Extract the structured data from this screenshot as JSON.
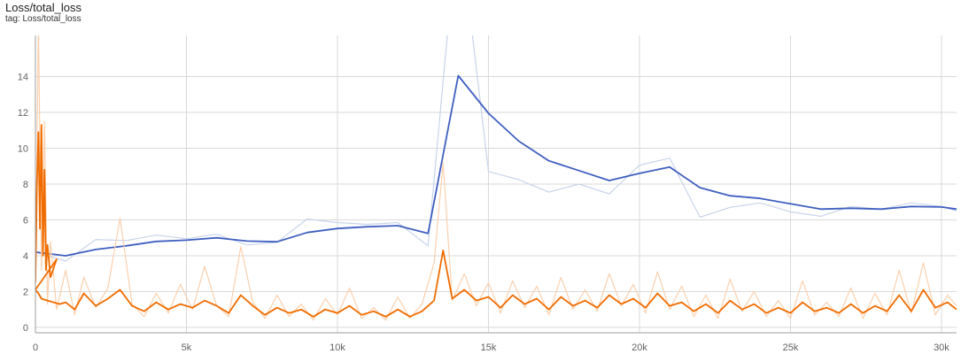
{
  "header": {
    "title": "Loss/total_loss",
    "tag": "tag: Loss/total_loss"
  },
  "chart_data": {
    "type": "line",
    "title": "Loss/total_loss",
    "xlabel": "",
    "ylabel": "",
    "xlim": [
      0,
      30500
    ],
    "ylim": [
      -0.3,
      16.3
    ],
    "x_ticks": [
      0,
      5000,
      10000,
      15000,
      20000,
      25000,
      30000
    ],
    "x_tick_labels": [
      "0",
      "5k",
      "10k",
      "15k",
      "20k",
      "25k",
      "30k"
    ],
    "y_ticks": [
      0,
      2,
      4,
      6,
      8,
      10,
      12,
      14
    ],
    "y_tick_labels": [
      "0",
      "2",
      "4",
      "6",
      "8",
      "10",
      "12",
      "14"
    ],
    "grid": true,
    "colors": {
      "blue_smoothed": "#3f5fc0",
      "blue_raw": "#c8d3ea",
      "orange_smoothed": "#f06c00",
      "orange_raw": "#fbd0ad",
      "grid": "#d9d9d9"
    },
    "series": [
      {
        "style": "raw",
        "color": "#c8d3ea",
        "x": [
          0,
          1000,
          2000,
          3000,
          4000,
          5000,
          6000,
          7000,
          8000,
          9000,
          10000,
          11000,
          12000,
          13000,
          14000,
          15000,
          16000,
          17000,
          18000,
          19000,
          20000,
          21000,
          22000,
          23000,
          24000,
          25000,
          26000,
          27000,
          28000,
          29000,
          30000,
          30500
        ],
        "y": [
          4.2,
          3.7,
          4.9,
          4.85,
          5.15,
          4.95,
          5.2,
          4.6,
          4.75,
          6.05,
          5.85,
          5.75,
          5.85,
          4.55,
          23.0,
          8.7,
          8.25,
          7.55,
          8.0,
          7.45,
          9.05,
          9.45,
          6.15,
          6.7,
          6.95,
          6.45,
          6.2,
          6.75,
          6.6,
          6.95,
          6.75,
          6.5
        ]
      },
      {
        "style": "smoothed",
        "color": "#3f5fc0",
        "x": [
          0,
          1000,
          2000,
          3000,
          4000,
          5000,
          6000,
          7000,
          8000,
          9000,
          10000,
          11000,
          12000,
          13000,
          14000,
          15000,
          16000,
          17000,
          18000,
          19000,
          20000,
          21000,
          22000,
          23000,
          24000,
          25000,
          26000,
          27000,
          28000,
          29000,
          30000,
          30500
        ],
        "y": [
          4.2,
          4.0,
          4.35,
          4.55,
          4.8,
          4.87,
          5.0,
          4.82,
          4.78,
          5.3,
          5.52,
          5.62,
          5.68,
          5.25,
          14.05,
          11.95,
          10.4,
          9.3,
          8.75,
          8.2,
          8.6,
          8.95,
          7.8,
          7.35,
          7.2,
          6.9,
          6.6,
          6.65,
          6.6,
          6.75,
          6.72,
          6.6
        ]
      },
      {
        "style": "raw",
        "color": "#fbd0ad",
        "x": [
          0,
          100,
          200,
          300,
          400,
          500,
          700,
          1000,
          1300,
          1600,
          2000,
          2400,
          2800,
          3200,
          3600,
          4000,
          4400,
          4800,
          5200,
          5600,
          6000,
          6400,
          6800,
          7200,
          7600,
          8000,
          8400,
          8800,
          9200,
          9600,
          10000,
          10400,
          10800,
          11200,
          11600,
          12000,
          12400,
          12800,
          13200,
          13500,
          13800,
          14200,
          14600,
          15000,
          15400,
          15800,
          16200,
          16600,
          17000,
          17400,
          17800,
          18200,
          18600,
          19000,
          19400,
          19800,
          20200,
          20600,
          21000,
          21400,
          21800,
          22200,
          22600,
          23000,
          23400,
          23800,
          24200,
          24600,
          25000,
          25400,
          25800,
          26200,
          26600,
          27000,
          27400,
          27800,
          28200,
          28600,
          29000,
          29400,
          29800,
          30200,
          30500
        ],
        "y": [
          2.2,
          17.0,
          3.2,
          11.5,
          1.3,
          4.8,
          1.0,
          3.2,
          0.7,
          2.8,
          1.1,
          2.2,
          6.1,
          1.3,
          0.6,
          1.9,
          0.8,
          2.4,
          1.0,
          3.4,
          1.2,
          0.6,
          4.5,
          1.4,
          0.5,
          1.8,
          0.6,
          1.3,
          0.4,
          1.6,
          0.7,
          2.2,
          0.5,
          1.1,
          0.4,
          1.7,
          0.5,
          1.3,
          3.6,
          9.2,
          1.5,
          3.0,
          1.2,
          2.5,
          0.8,
          2.6,
          1.1,
          2.3,
          0.7,
          2.8,
          1.0,
          2.1,
          0.9,
          3.0,
          1.2,
          2.4,
          0.8,
          3.1,
          1.0,
          2.3,
          0.6,
          1.8,
          0.5,
          2.7,
          0.9,
          2.0,
          0.6,
          1.5,
          0.5,
          2.6,
          0.7,
          1.4,
          0.6,
          2.2,
          0.5,
          1.9,
          0.7,
          3.2,
          0.8,
          3.6,
          0.7,
          1.8,
          1.2
        ]
      },
      {
        "style": "smoothed",
        "color": "#f06c00",
        "x": [
          0,
          50,
          100,
          150,
          200,
          250,
          300,
          350,
          400,
          500,
          600,
          700,
          0,
          100,
          200,
          400,
          600,
          800,
          1000,
          1300,
          1600,
          2000,
          2400,
          2800,
          3200,
          3600,
          4000,
          4400,
          4800,
          5200,
          5600,
          6000,
          6400,
          6800,
          7200,
          7600,
          8000,
          8400,
          8800,
          9200,
          9600,
          10000,
          10400,
          10800,
          11200,
          11600,
          12000,
          12400,
          12800,
          13200,
          13500,
          13800,
          14200,
          14600,
          15000,
          15400,
          15800,
          16200,
          16600,
          17000,
          17400,
          17800,
          18200,
          18600,
          19000,
          19400,
          19800,
          20200,
          20600,
          21000,
          21400,
          21800,
          22200,
          22600,
          23000,
          23400,
          23800,
          24200,
          24600,
          25000,
          25400,
          25800,
          26200,
          26600,
          27000,
          27400,
          27800,
          28200,
          28600,
          29000,
          29400,
          29800,
          30200,
          30500
        ],
        "y": [
          2.5,
          8.0,
          10.9,
          5.5,
          11.3,
          4.0,
          8.8,
          3.2,
          4.6,
          2.8,
          3.3,
          3.8,
          2.1,
          1.9,
          1.6,
          1.5,
          1.4,
          1.3,
          1.4,
          1.0,
          1.9,
          1.2,
          1.6,
          2.1,
          1.2,
          0.9,
          1.4,
          1.0,
          1.3,
          1.1,
          1.5,
          1.2,
          0.8,
          1.8,
          1.2,
          0.7,
          1.1,
          0.8,
          1.0,
          0.6,
          1.0,
          0.8,
          1.2,
          0.7,
          0.9,
          0.6,
          1.0,
          0.6,
          0.9,
          1.5,
          4.3,
          1.6,
          2.1,
          1.5,
          1.7,
          1.1,
          1.8,
          1.3,
          1.6,
          1.0,
          1.7,
          1.2,
          1.5,
          1.1,
          1.8,
          1.3,
          1.6,
          1.1,
          1.9,
          1.2,
          1.4,
          0.9,
          1.3,
          0.8,
          1.5,
          1.0,
          1.3,
          0.8,
          1.1,
          0.8,
          1.4,
          0.9,
          1.1,
          0.8,
          1.3,
          0.8,
          1.2,
          0.9,
          1.8,
          0.9,
          2.1,
          1.1,
          1.4,
          1.0
        ]
      }
    ]
  }
}
